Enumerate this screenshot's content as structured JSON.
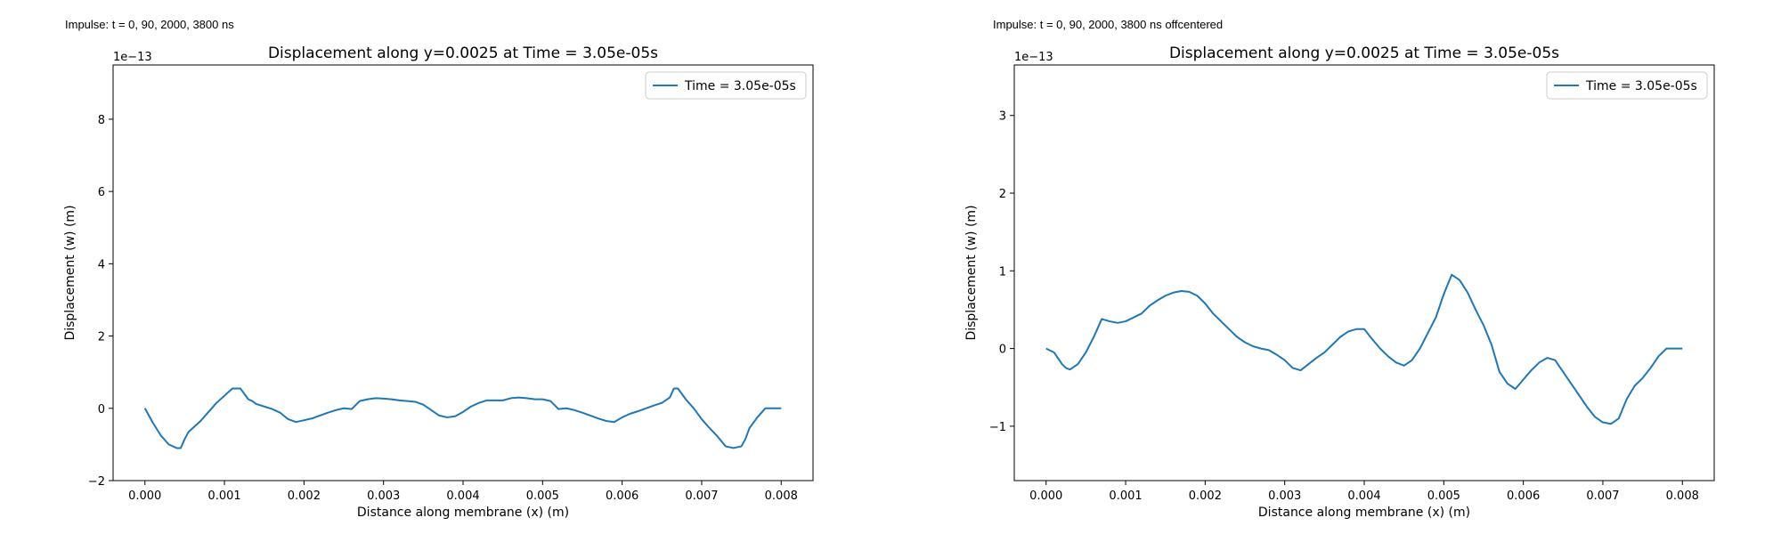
{
  "panels": [
    {
      "caption": "Impulse: t = 0, 90, 2000, 3800 ns"
    },
    {
      "caption": "Impulse: t = 0, 90, 2000, 3800 ns offcentered"
    }
  ],
  "chart_data": [
    {
      "type": "line",
      "title": "Displacement along y=0.0025 at Time = 3.05e-05s",
      "xlabel": "Distance along membrane (x) (m)",
      "ylabel": "Displacement (w) (m)",
      "y_offset_label": "1e−13",
      "xlim": [
        -0.0004,
        0.0084
      ],
      "ylim": [
        -2,
        9.5
      ],
      "xticks": [
        0,
        0.001,
        0.002,
        0.003,
        0.004,
        0.005,
        0.006,
        0.007,
        0.008
      ],
      "xtick_labels": [
        "0.000",
        "0.001",
        "0.002",
        "0.003",
        "0.004",
        "0.005",
        "0.006",
        "0.007",
        "0.008"
      ],
      "yticks": [
        -2,
        0,
        2,
        4,
        6,
        8
      ],
      "ytick_labels": [
        "−2",
        "0",
        "2",
        "4",
        "6",
        "8"
      ],
      "grid": false,
      "legend_position": "top-right",
      "color": "#1f77b4",
      "series": [
        {
          "name": "Time = 3.05e-05s",
          "x": [
            0,
            0.0001,
            0.0002,
            0.0003,
            0.0004,
            0.00045,
            0.0005,
            0.00055,
            0.0006,
            0.0007,
            0.0008,
            0.0009,
            0.001,
            0.0011,
            0.0012,
            0.0013,
            0.00135,
            0.0014,
            0.0015,
            0.0016,
            0.0017,
            0.0018,
            0.0019,
            0.002,
            0.0021,
            0.0022,
            0.0023,
            0.0024,
            0.0025,
            0.0026,
            0.0027,
            0.0028,
            0.0029,
            0.003,
            0.0031,
            0.0032,
            0.0033,
            0.0034,
            0.0035,
            0.0036,
            0.0037,
            0.0038,
            0.0039,
            0.004,
            0.0041,
            0.0042,
            0.0043,
            0.0044,
            0.0045,
            0.0046,
            0.0047,
            0.0048,
            0.0049,
            0.005,
            0.0051,
            0.0052,
            0.0053,
            0.0054,
            0.0055,
            0.0056,
            0.0057,
            0.0058,
            0.0059,
            0.006,
            0.0061,
            0.0062,
            0.0063,
            0.0064,
            0.0065,
            0.0066,
            0.00665,
            0.0067,
            0.0068,
            0.0069,
            0.007,
            0.0071,
            0.0072,
            0.0073,
            0.0074,
            0.0075,
            0.00755,
            0.0076,
            0.0077,
            0.0078,
            0.0079,
            0.008
          ],
          "y": [
            0,
            -0.4,
            -0.75,
            -1.0,
            -1.1,
            -1.1,
            -0.85,
            -0.65,
            -0.55,
            -0.35,
            -0.1,
            0.15,
            0.35,
            0.55,
            0.55,
            0.25,
            0.2,
            0.12,
            0.05,
            -0.02,
            -0.12,
            -0.3,
            -0.38,
            -0.33,
            -0.28,
            -0.2,
            -0.12,
            -0.05,
            0.0,
            -0.02,
            0.2,
            0.25,
            0.28,
            0.27,
            0.25,
            0.22,
            0.2,
            0.18,
            0.1,
            -0.05,
            -0.2,
            -0.25,
            -0.22,
            -0.1,
            0.05,
            0.15,
            0.22,
            0.22,
            0.22,
            0.28,
            0.3,
            0.28,
            0.25,
            0.25,
            0.2,
            -0.02,
            0.0,
            -0.05,
            -0.12,
            -0.2,
            -0.28,
            -0.35,
            -0.38,
            -0.25,
            -0.15,
            -0.08,
            0.0,
            0.08,
            0.15,
            0.3,
            0.55,
            0.55,
            0.25,
            0.0,
            -0.3,
            -0.55,
            -0.78,
            -1.05,
            -1.1,
            -1.05,
            -0.85,
            -0.55,
            -0.25,
            0,
            0,
            0
          ],
          "color": "#1f77b4"
        }
      ]
    },
    {
      "type": "line",
      "title": "Displacement along y=0.0025 at Time = 3.05e-05s",
      "xlabel": "Distance along membrane (x) (m)",
      "ylabel": "Displacement (w) (m)",
      "y_offset_label": "1e−13",
      "xlim": [
        -0.0004,
        0.0084
      ],
      "ylim": [
        -1.7,
        3.65
      ],
      "xticks": [
        0,
        0.001,
        0.002,
        0.003,
        0.004,
        0.005,
        0.006,
        0.007,
        0.008
      ],
      "xtick_labels": [
        "0.000",
        "0.001",
        "0.002",
        "0.003",
        "0.004",
        "0.005",
        "0.006",
        "0.007",
        "0.008"
      ],
      "yticks": [
        -1,
        0,
        1,
        2,
        3
      ],
      "ytick_labels": [
        "−1",
        "0",
        "1",
        "2",
        "3"
      ],
      "grid": false,
      "legend_position": "top-right",
      "color": "#1f77b4",
      "series": [
        {
          "name": "Time = 3.05e-05s",
          "x": [
            0,
            0.0001,
            0.0002,
            0.00025,
            0.0003,
            0.0004,
            0.0005,
            0.0006,
            0.0007,
            0.0008,
            0.0009,
            0.001,
            0.0011,
            0.0012,
            0.0013,
            0.0014,
            0.0015,
            0.0016,
            0.0017,
            0.0018,
            0.0019,
            0.002,
            0.0021,
            0.0022,
            0.0023,
            0.0024,
            0.0025,
            0.0026,
            0.0027,
            0.0028,
            0.0029,
            0.003,
            0.0031,
            0.0032,
            0.0033,
            0.0034,
            0.0035,
            0.0036,
            0.0037,
            0.0038,
            0.0039,
            0.004,
            0.0041,
            0.0042,
            0.0043,
            0.0044,
            0.0045,
            0.0046,
            0.0047,
            0.0048,
            0.0049,
            0.005,
            0.0051,
            0.0052,
            0.0053,
            0.0054,
            0.0055,
            0.0056,
            0.0057,
            0.0058,
            0.0059,
            0.006,
            0.0061,
            0.0062,
            0.0063,
            0.0064,
            0.0065,
            0.0066,
            0.0067,
            0.0068,
            0.0069,
            0.007,
            0.0071,
            0.0072,
            0.0073,
            0.0074,
            0.0075,
            0.0076,
            0.0077,
            0.0078,
            0.0079,
            0.008
          ],
          "y": [
            0,
            -0.05,
            -0.2,
            -0.25,
            -0.27,
            -0.2,
            -0.05,
            0.15,
            0.38,
            0.35,
            0.33,
            0.35,
            0.4,
            0.45,
            0.55,
            0.62,
            0.68,
            0.72,
            0.74,
            0.73,
            0.68,
            0.58,
            0.45,
            0.35,
            0.25,
            0.15,
            0.08,
            0.03,
            0.0,
            -0.02,
            -0.08,
            -0.15,
            -0.25,
            -0.28,
            -0.2,
            -0.12,
            -0.05,
            0.05,
            0.15,
            0.22,
            0.25,
            0.25,
            0.12,
            0.0,
            -0.1,
            -0.18,
            -0.22,
            -0.15,
            0.0,
            0.2,
            0.4,
            0.7,
            0.95,
            0.88,
            0.72,
            0.5,
            0.3,
            0.05,
            -0.3,
            -0.45,
            -0.52,
            -0.4,
            -0.28,
            -0.18,
            -0.12,
            -0.15,
            -0.3,
            -0.45,
            -0.6,
            -0.75,
            -0.88,
            -0.95,
            -0.97,
            -0.9,
            -0.65,
            -0.48,
            -0.38,
            -0.25,
            -0.1,
            0.0,
            0.0,
            0.0
          ],
          "color": "#1f77b4"
        }
      ]
    }
  ]
}
